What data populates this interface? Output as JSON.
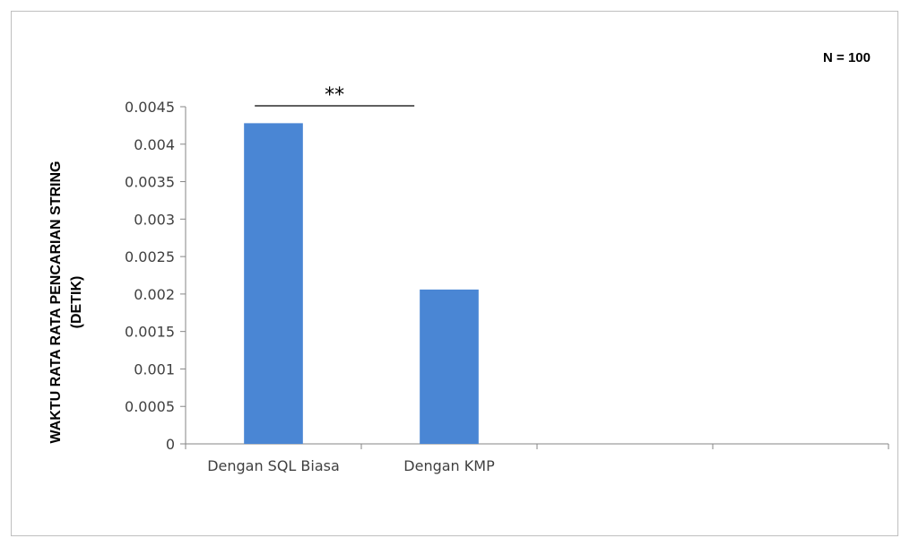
{
  "chart_data": {
    "type": "bar",
    "categories": [
      "Dengan SQL Biasa",
      "Dengan KMP",
      "",
      ""
    ],
    "values": [
      0.00428,
      0.00206,
      null,
      null
    ],
    "ylabel_lines": [
      "WAKTU RATA RATA PENCARIAN STRING",
      "(DETIK)"
    ],
    "xlabel": "",
    "ylim": [
      0,
      0.0045
    ],
    "yticks": [
      "0",
      "0.0005",
      "0.001",
      "0.0015",
      "0.002",
      "0.0025",
      "0.003",
      "0.0035",
      "0.004",
      "0.0045"
    ],
    "ytick_values": [
      0,
      0.0005,
      0.001,
      0.0015,
      0.002,
      0.0025,
      0.003,
      0.0035,
      0.004,
      0.0045
    ],
    "grid": false,
    "bar_color": "#4a86d4",
    "annotations": {
      "sample_size": "N = 100",
      "significance": "**",
      "significance_between": [
        0,
        1
      ]
    }
  }
}
